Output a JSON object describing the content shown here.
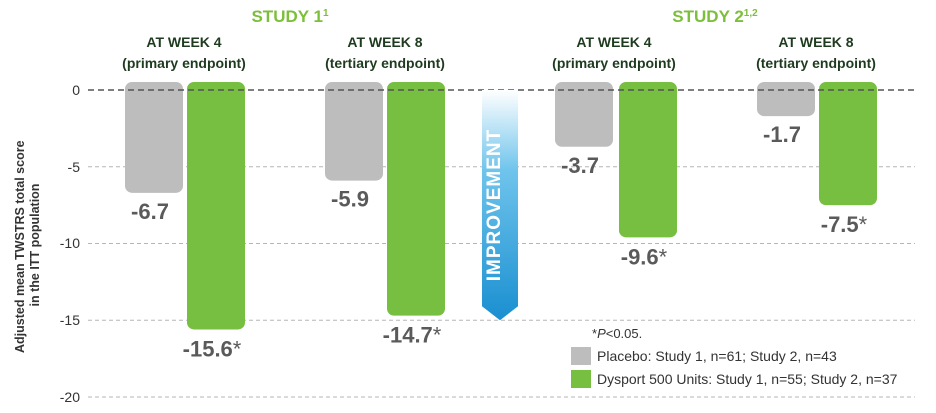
{
  "chart_data": {
    "type": "bar",
    "ylabel_line1": "Adjusted mean TWSTRS total score",
    "ylabel_line2": "in the ITT population",
    "ylim": [
      -20,
      0
    ],
    "yticks": [
      0,
      -5,
      -10,
      -15,
      -20
    ],
    "ytick_labels": [
      "0",
      "-5",
      "-10",
      "-15",
      "-20"
    ],
    "studies": [
      {
        "title": "STUDY 1",
        "superscript": "1"
      },
      {
        "title": "STUDY 2",
        "superscript": "1,2"
      }
    ],
    "groups": [
      {
        "head_line1": "AT WEEK 4",
        "head_line2": "(primary endpoint)",
        "placebo": -6.7,
        "dysport": -15.6,
        "placebo_label": "-6.7",
        "dysport_label": "-15.6",
        "dysport_star": "*"
      },
      {
        "head_line1": "AT WEEK 8",
        "head_line2": "(tertiary endpoint)",
        "placebo": -5.9,
        "dysport": -14.7,
        "placebo_label": "-5.9",
        "dysport_label": "-14.7",
        "dysport_star": "*"
      },
      {
        "head_line1": "AT WEEK 4",
        "head_line2": "(primary endpoint)",
        "placebo": -3.7,
        "dysport": -9.6,
        "placebo_label": "-3.7",
        "dysport_label": "-9.6",
        "dysport_star": "*"
      },
      {
        "head_line1": "AT WEEK 8",
        "head_line2": "(tertiary endpoint)",
        "placebo": -1.7,
        "dysport": -7.5,
        "placebo_label": "-1.7",
        "dysport_label": "-7.5",
        "dysport_star": "*"
      }
    ],
    "series": [
      {
        "name": "Placebo: Study 1, n=61; Study 2, n=43",
        "color": "#bdbdbd"
      },
      {
        "name": "Dysport 500 Units: Study 1, n=55; Study 2, n=37",
        "color": "#77bf40"
      }
    ],
    "improvement_label": "IMPROVEMENT",
    "improvement_arrow_to": -15,
    "footnote_prefix": "*",
    "footnote_p": "P",
    "footnote_rest": "<0.05."
  }
}
